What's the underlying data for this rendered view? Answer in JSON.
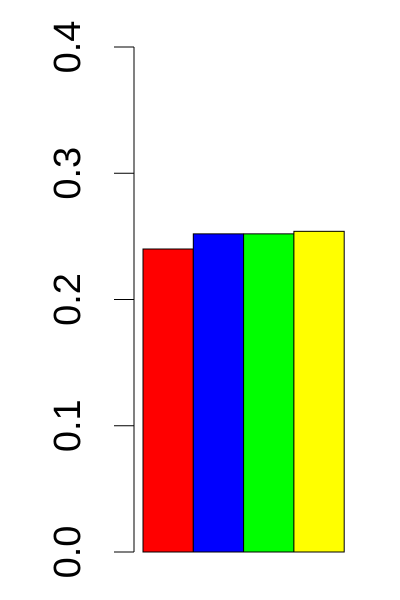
{
  "chart_data": {
    "type": "bar",
    "title": "",
    "xlabel": "",
    "ylabel": "",
    "ylim": [
      0,
      0.4
    ],
    "y_ticks": [
      0.0,
      0.1,
      0.2,
      0.3,
      0.4
    ],
    "y_tick_labels": [
      "0.0",
      "0.1",
      "0.2",
      "0.3",
      "0.4"
    ],
    "grid": false,
    "legend": "none",
    "categories": [
      "",
      "",
      "",
      ""
    ],
    "values": [
      0.24,
      0.252,
      0.252,
      0.254
    ],
    "colors": [
      "#ff0000",
      "#0000ff",
      "#00ff00",
      "#ffff00"
    ]
  }
}
